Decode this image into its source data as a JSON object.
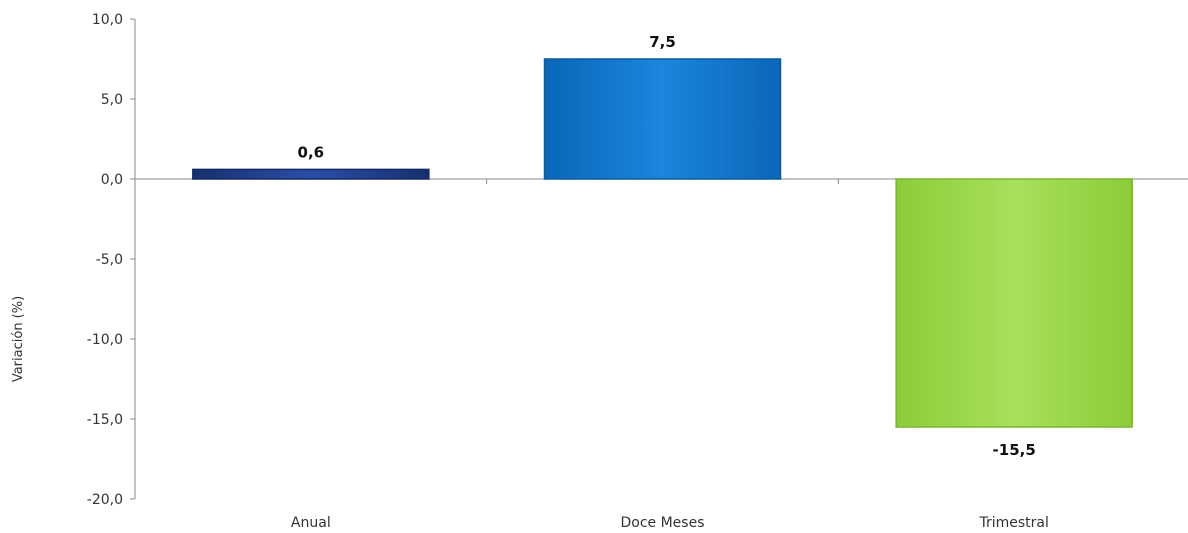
{
  "chart_data": {
    "type": "bar",
    "categories": [
      "Anual",
      "Doce Meses",
      "Trimestral"
    ],
    "values": [
      0.6,
      7.5,
      -15.5
    ],
    "value_labels": [
      "0,6",
      "7,5",
      "-15,5"
    ],
    "title": "",
    "xlabel": "",
    "ylabel": "Variación (%)",
    "ylim": [
      -20,
      10
    ],
    "yticks": [
      10,
      5,
      0,
      -5,
      -10,
      -15,
      -20
    ],
    "ytick_labels": [
      "10,0",
      "5,0",
      "0,0",
      "-5,0",
      "-10,0",
      "-15,0",
      "-20,0"
    ],
    "grid": false,
    "legend": "none",
    "colors": [
      "#1f3d8c",
      "#1177cc",
      "#9ed94a"
    ],
    "border_colors": [
      "#142a66",
      "#0b5a9e",
      "#7ab530"
    ]
  }
}
